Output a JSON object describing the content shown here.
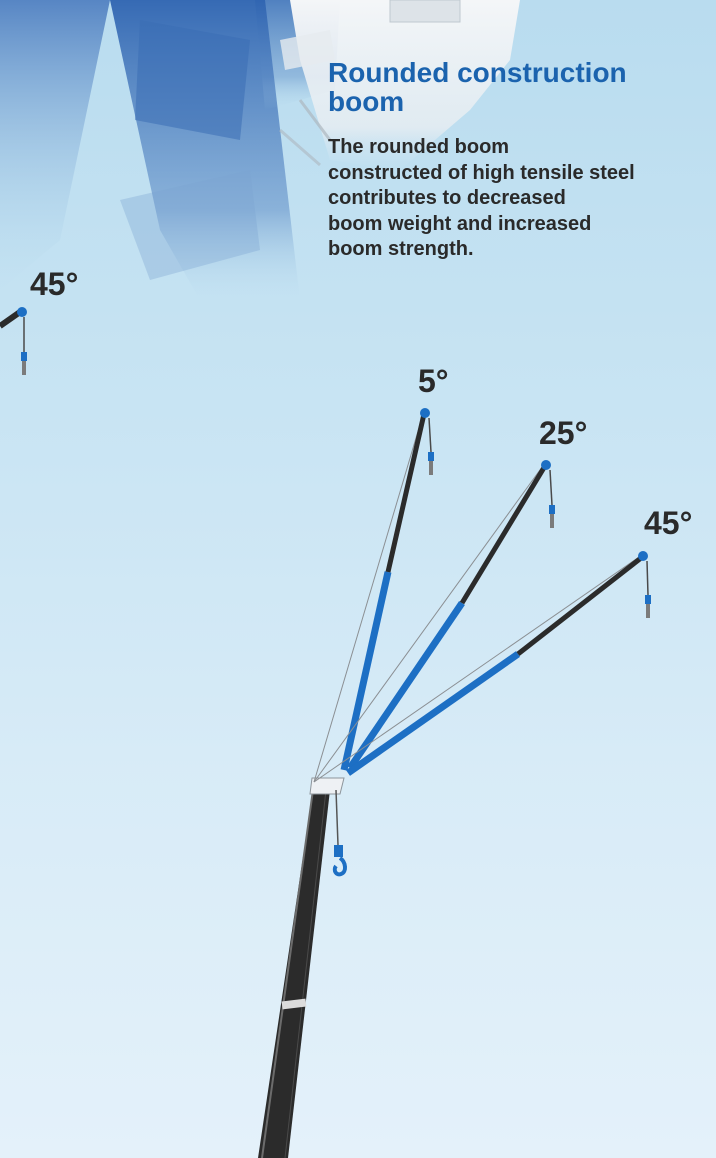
{
  "heading": {
    "title": "Rounded construction boom"
  },
  "description": {
    "lines": [
      "The rounded boom",
      "constructed of high tensile steel",
      "contributes to decreased",
      "boom weight and increased",
      "boom strength."
    ]
  },
  "angle_labels": {
    "left": "45°",
    "offset_5": "5°",
    "offset_25": "25°",
    "offset_45": "45°"
  },
  "colors": {
    "heading": "#1b63ae",
    "body_text": "#2a2a2a",
    "boom_blue": "#1d6fc4",
    "boom_dark": "#2b2b2b",
    "crane_body": "#2f64b1",
    "cab_white": "#eef1f4",
    "background_top": "#b9dcef",
    "background_bottom": "#e4f1fa"
  },
  "icons": {
    "hook": "crane-hook-icon"
  }
}
